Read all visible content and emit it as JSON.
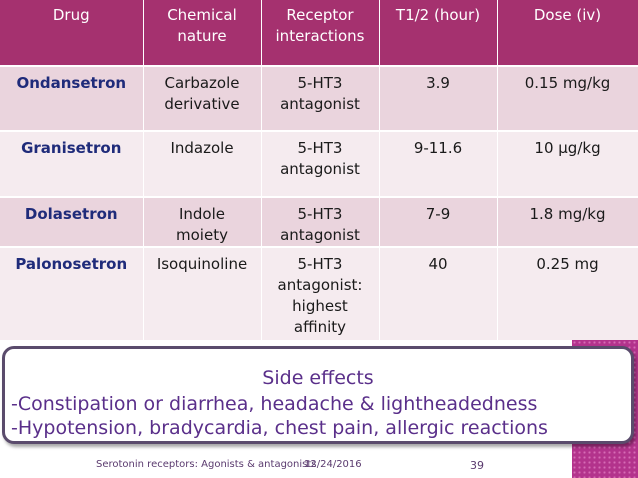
{
  "table": {
    "headers": [
      [
        "Drug"
      ],
      [
        "Chemical",
        "nature"
      ],
      [
        "Receptor",
        "interactions"
      ],
      [
        "T1/2 (hour)"
      ],
      [
        "Dose (iv)"
      ]
    ],
    "rows": [
      {
        "drug": "Ondansetron",
        "chemical": [
          "Carbazole",
          "derivative"
        ],
        "receptor": [
          "5-HT3",
          "antagonist"
        ],
        "half_life": "3.9",
        "dose": "0.15 mg/kg"
      },
      {
        "drug": "Granisetron",
        "chemical": [
          "Indazole"
        ],
        "receptor": [
          "5-HT3",
          "antagonist"
        ],
        "half_life": "9-11.6",
        "dose": "10 µg/kg"
      },
      {
        "drug": "Dolasetron",
        "chemical": [
          "Indole",
          "moiety"
        ],
        "receptor": [
          "5-HT3",
          "antagonist"
        ],
        "half_life": "7-9",
        "dose": "1.8 mg/kg"
      },
      {
        "drug": "Palonosetron",
        "chemical": [
          "Isoquinoline"
        ],
        "receptor": [
          "5-HT3",
          "antagonist:",
          "highest",
          "affinity"
        ],
        "half_life": "40",
        "dose": "0.25 mg"
      }
    ]
  },
  "side_effects": {
    "title": "Side effects",
    "lines": [
      "-Constipation or diarrhea, headache & lightheadedness",
      "-Hypotension, bradycardia, chest pain, allergic reactions"
    ]
  },
  "footer": {
    "title": "Serotonin receptors: Agonists & antagonists",
    "date": "12/24/2016",
    "page": "39"
  },
  "colors": {
    "header_bg": "#a5316f",
    "row_odd": "#ead4dd",
    "row_even": "#f5ebef",
    "accent_strip": "#c2429a",
    "side_text": "#5a2f8a"
  }
}
